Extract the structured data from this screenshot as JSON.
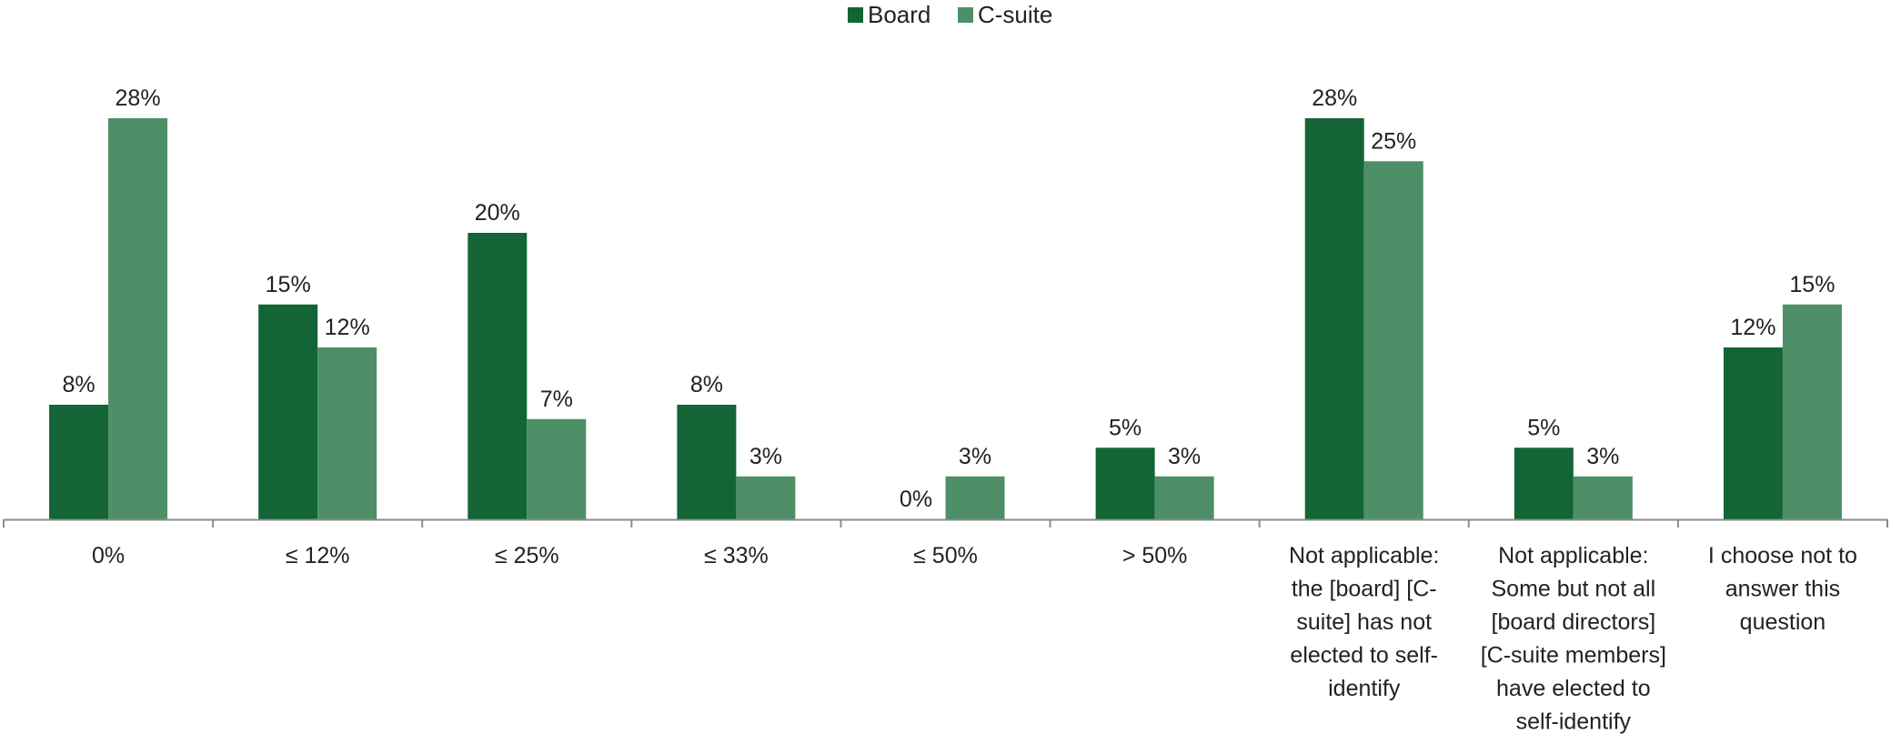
{
  "chart_data": {
    "type": "bar",
    "title": "",
    "xlabel": "",
    "ylabel": "",
    "ylim": [
      0,
      30
    ],
    "legend_position": "top-center",
    "grid": false,
    "categories": [
      "0%",
      "≤ 12%",
      "≤ 25%",
      "≤ 33%",
      "≤ 50%",
      "> 50%",
      "Not applicable: the [board] [C-suite] has not elected to self-identify",
      "Not applicable: Some but not all [board directors] [C-suite members] have elected to self-identify",
      "I choose not to answer this question"
    ],
    "category_lines": [
      [
        "0%"
      ],
      [
        "≤ 12%"
      ],
      [
        "≤ 25%"
      ],
      [
        "≤ 33%"
      ],
      [
        "≤ 50%"
      ],
      [
        "> 50%"
      ],
      [
        "Not applicable:",
        "the [board] [C-",
        "suite] has not",
        "elected to self-",
        "identify"
      ],
      [
        "Not applicable:",
        "Some but not all",
        "[board directors]",
        "[C-suite members]",
        "have elected to",
        "self-identify"
      ],
      [
        "I choose not to",
        "answer this",
        "question"
      ]
    ],
    "series": [
      {
        "name": "Board",
        "color": "#136535",
        "values": [
          8,
          15,
          20,
          8,
          0,
          5,
          28,
          5,
          12
        ],
        "labels": [
          "8%",
          "15%",
          "20%",
          "8%",
          "0%",
          "5%",
          "28%",
          "5%",
          "12%"
        ]
      },
      {
        "name": "C-suite",
        "color": "#4e8f67",
        "values": [
          28,
          12,
          7,
          3,
          3,
          3,
          25,
          3,
          15
        ],
        "labels": [
          "28%",
          "12%",
          "7%",
          "3%",
          "3%",
          "3%",
          "25%",
          "3%",
          "15%"
        ]
      }
    ]
  }
}
